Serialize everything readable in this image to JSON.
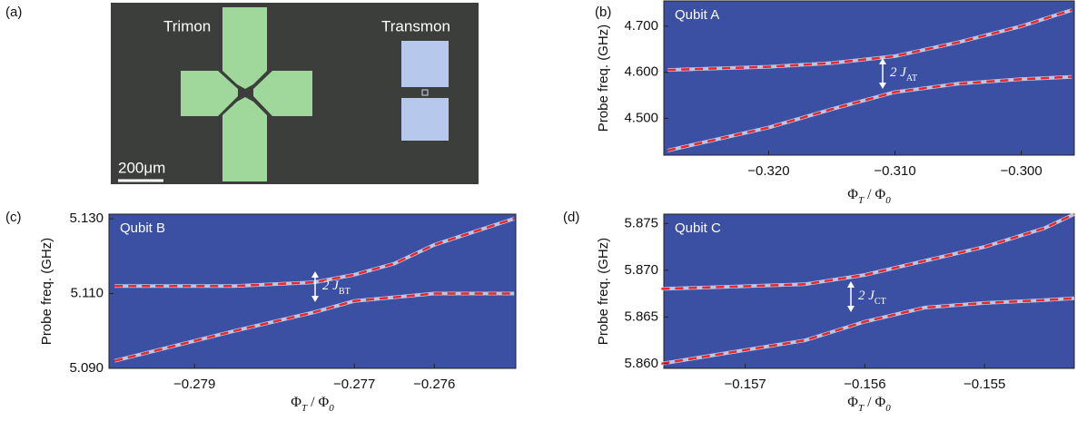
{
  "image_panel": {
    "label": "(a)",
    "texts": [
      "Trimon",
      "Transmon",
      "200μm"
    ]
  },
  "chart_data": [
    {
      "type": "line",
      "panel_label": "(b)",
      "title": "Qubit A",
      "y_label": "Probe freq. (GHz)",
      "x_label_parts": [
        "Φ",
        "T",
        " / Φ",
        "0"
      ],
      "annotation_parts": [
        "2 J",
        "AT"
      ],
      "xlim": [
        -0.3283,
        -0.2958
      ],
      "ylim": [
        4.42,
        4.755
      ],
      "xticks": [
        {
          "value": -0.32,
          "label": "−0.320"
        },
        {
          "value": -0.31,
          "label": "−0.310"
        },
        {
          "value": -0.3,
          "label": "−0.300"
        }
      ],
      "yticks": [
        {
          "value": 4.5,
          "label": "4.500"
        },
        {
          "value": 4.6,
          "label": "4.600"
        },
        {
          "value": 4.7,
          "label": "4.700"
        }
      ],
      "x": [
        -0.328,
        -0.32,
        -0.315,
        -0.31,
        -0.305,
        -0.3,
        -0.296
      ],
      "series": [
        {
          "color": "#e8282b",
          "values": [
            4.605,
            4.612,
            4.62,
            4.635,
            4.665,
            4.7,
            4.735
          ]
        },
        {
          "color": "#e8282b",
          "values": [
            4.43,
            4.48,
            4.52,
            4.557,
            4.575,
            4.585,
            4.59
          ]
        }
      ]
    },
    {
      "type": "line",
      "panel_label": "(c)",
      "title": "Qubit B",
      "y_label": "Probe freq. (GHz)",
      "x_label_parts": [
        "Φ",
        "T",
        " / Φ",
        "0"
      ],
      "annotation_parts": [
        "2 J",
        "BT"
      ],
      "xlim": [
        -0.28007,
        -0.27498
      ],
      "ylim": [
        5.09,
        5.1312
      ],
      "xticks": [
        {
          "value": -0.279,
          "label": "−0.279"
        },
        {
          "value": -0.277,
          "label": "−0.277"
        },
        {
          "value": -0.276,
          "label": "−0.276"
        }
      ],
      "yticks": [
        {
          "value": 5.09,
          "label": "5.090"
        },
        {
          "value": 5.11,
          "label": "5.110"
        },
        {
          "value": 5.13,
          "label": "5.130"
        }
      ],
      "x": [
        -0.28,
        -0.2785,
        -0.2775,
        -0.277,
        -0.2765,
        -0.276,
        -0.275
      ],
      "series": [
        {
          "color": "#e8282b",
          "values": [
            5.112,
            5.112,
            5.113,
            5.115,
            5.118,
            5.123,
            5.13
          ]
        },
        {
          "color": "#e8282b",
          "values": [
            5.092,
            5.1,
            5.105,
            5.108,
            5.109,
            5.11,
            5.11
          ]
        }
      ]
    },
    {
      "type": "line",
      "panel_label": "(d)",
      "title": "Qubit C",
      "y_label": "Probe freq. (GHz)",
      "x_label_parts": [
        "Φ",
        "T",
        " / Φ",
        "0"
      ],
      "annotation_parts": [
        "2 J",
        "CT"
      ],
      "xlim": [
        -0.15768,
        -0.15425
      ],
      "ylim": [
        5.8595,
        5.876
      ],
      "xticks": [
        {
          "value": -0.157,
          "label": "−0.157"
        },
        {
          "value": -0.156,
          "label": "−0.156"
        },
        {
          "value": -0.155,
          "label": "−0.155"
        }
      ],
      "yticks": [
        {
          "value": 5.86,
          "label": "5.860"
        },
        {
          "value": 5.865,
          "label": "5.865"
        },
        {
          "value": 5.87,
          "label": "5.870"
        },
        {
          "value": 5.875,
          "label": "5.875"
        }
      ],
      "x": [
        -0.1577,
        -0.1565,
        -0.156,
        -0.1555,
        -0.155,
        -0.1545,
        -0.15425
      ],
      "series": [
        {
          "color": "#e8282b",
          "values": [
            5.868,
            5.8685,
            5.8695,
            5.871,
            5.8725,
            5.8745,
            5.876
          ]
        },
        {
          "color": "#e8282b",
          "values": [
            5.86,
            5.8625,
            5.8645,
            5.866,
            5.8665,
            5.8668,
            5.867
          ]
        }
      ]
    }
  ]
}
